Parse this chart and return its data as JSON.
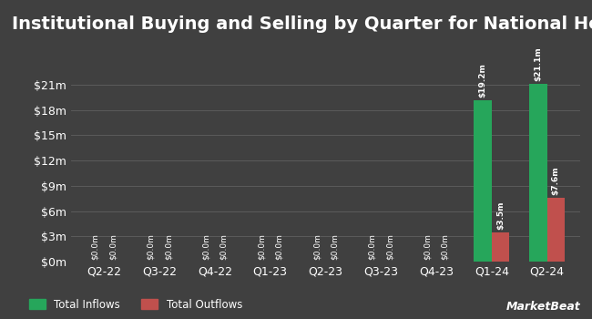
{
  "title": "Institutional Buying and Selling by Quarter for National HealthCare",
  "quarters": [
    "Q2-22",
    "Q3-22",
    "Q4-22",
    "Q1-23",
    "Q2-23",
    "Q3-23",
    "Q4-23",
    "Q1-24",
    "Q2-24"
  ],
  "inflows": [
    0.0,
    0.0,
    0.0,
    0.0,
    0.0,
    0.0,
    0.0,
    19.2,
    21.1
  ],
  "outflows": [
    0.0,
    0.0,
    0.0,
    0.0,
    0.0,
    0.0,
    0.0,
    3.5,
    7.6
  ],
  "inflow_labels": [
    "$0.0m",
    "$0.0m",
    "$0.0m",
    "$0.0m",
    "$0.0m",
    "$0.0m",
    "$0.0m",
    "$19.2m",
    "$21.1m"
  ],
  "outflow_labels": [
    "$0.0m",
    "$0.0m",
    "$0.0m",
    "$0.0m",
    "$0.0m",
    "$0.0m",
    "$0.0m",
    "$3.5m",
    "$7.6m"
  ],
  "inflow_color": "#26a65b",
  "outflow_color": "#c0504d",
  "bg_color": "#404040",
  "plot_bg_color": "#404040",
  "grid_color": "#606060",
  "text_color": "#ffffff",
  "label_color": "#ffffff",
  "yticks": [
    0,
    3,
    6,
    9,
    12,
    15,
    18,
    21
  ],
  "ytick_labels": [
    "$0m",
    "$3m",
    "$6m",
    "$9m",
    "$12m",
    "$15m",
    "$18m",
    "$21m"
  ],
  "ylim": [
    0,
    23.5
  ],
  "legend_inflow": "Total Inflows",
  "legend_outflow": "Total Outflows",
  "bar_width": 0.32,
  "title_fontsize": 14,
  "tick_fontsize": 9,
  "label_fontsize": 6.5,
  "watermark": "MarketBeat"
}
